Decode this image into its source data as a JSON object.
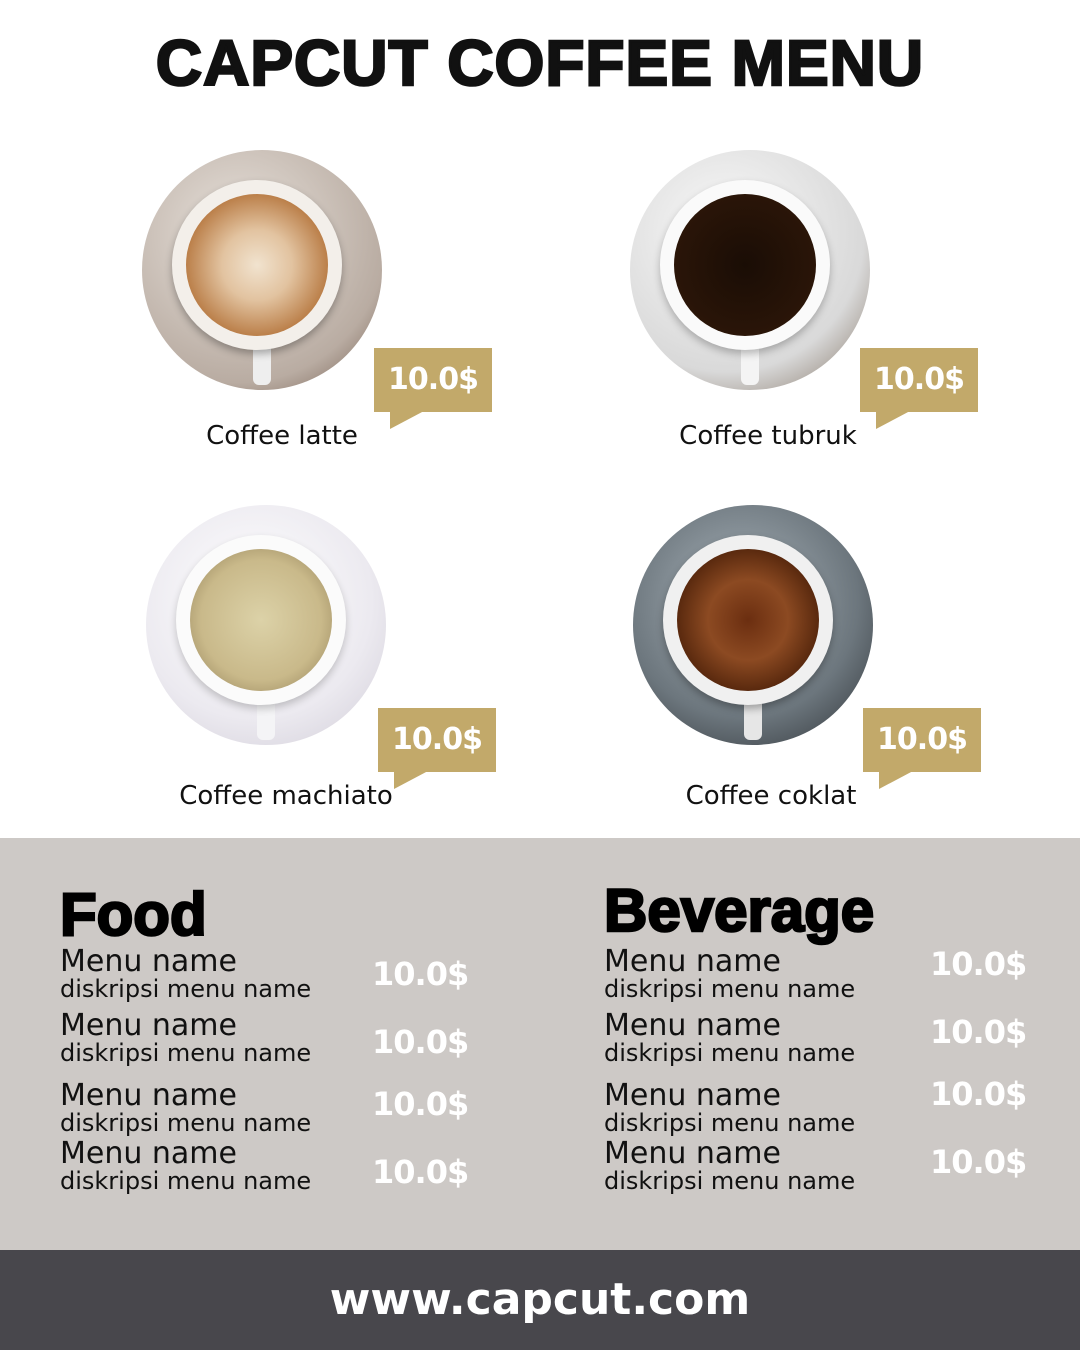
{
  "title": "CAPCUT COFFEE MENU",
  "colors": {
    "accent": "#c2a96a",
    "band": "#cdc9c6",
    "footer": "#48474c"
  },
  "featured": [
    {
      "name": "Coffee latte",
      "price": "10.0$"
    },
    {
      "name": "Coffee tubruk",
      "price": "10.0$"
    },
    {
      "name": "Coffee machiato",
      "price": "10.0$"
    },
    {
      "name": "Coffee coklat",
      "price": "10.0$"
    }
  ],
  "food": {
    "heading": "Food",
    "items": [
      {
        "name": "Menu name",
        "description": "diskripsi menu name",
        "price": "10.0$"
      },
      {
        "name": "Menu name",
        "description": "diskripsi menu name",
        "price": "10.0$"
      },
      {
        "name": "Menu name",
        "description": "diskripsi menu name",
        "price": "10.0$"
      },
      {
        "name": "Menu name",
        "description": "diskripsi menu name",
        "price": "10.0$"
      }
    ]
  },
  "beverage": {
    "heading": "Beverage",
    "items": [
      {
        "name": "Menu name",
        "description": "diskripsi menu name",
        "price": "10.0$"
      },
      {
        "name": "Menu name",
        "description": "diskripsi menu name",
        "price": "10.0$"
      },
      {
        "name": "Menu name",
        "description": "diskripsi menu name",
        "price": "10.0$"
      },
      {
        "name": "Menu name",
        "description": "diskripsi menu name",
        "price": "10.0$"
      }
    ]
  },
  "footer": {
    "url": "www.capcut.com"
  }
}
